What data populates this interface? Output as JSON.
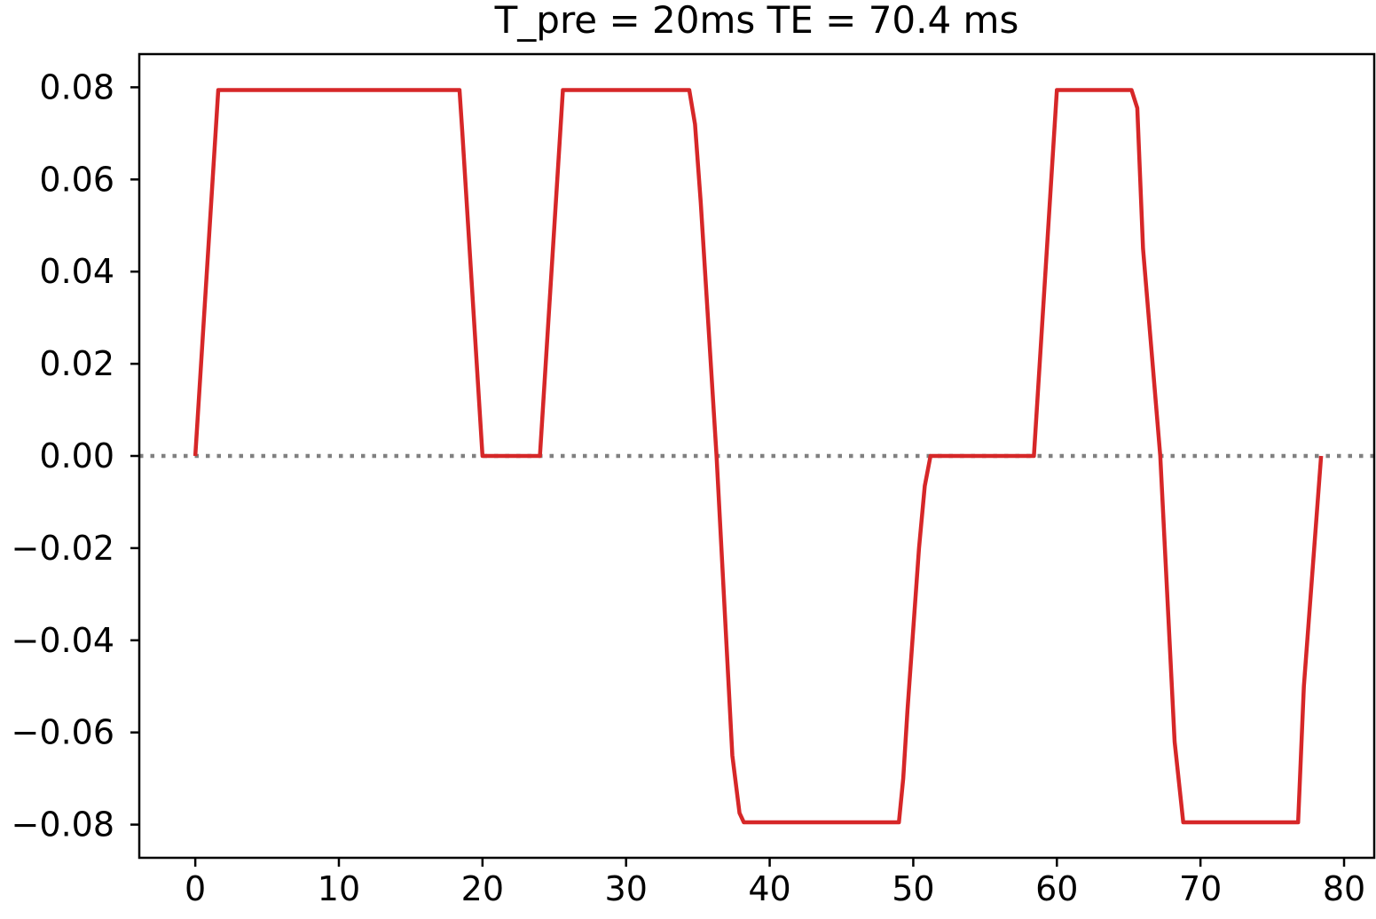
{
  "chart_data": {
    "type": "line",
    "title": "T_pre = 20ms  TE = 70.4 ms",
    "xlabel": "",
    "ylabel": "",
    "xlim": [
      -3.9,
      82.1
    ],
    "ylim": [
      -0.0872,
      0.0872
    ],
    "xticks": [
      0,
      10,
      20,
      30,
      40,
      50,
      60,
      70,
      80
    ],
    "xtick_labels": [
      "0",
      "10",
      "20",
      "30",
      "40",
      "50",
      "60",
      "70",
      "80"
    ],
    "yticks": [
      0.08,
      0.06,
      0.04,
      0.02,
      0.0,
      -0.02,
      -0.04,
      -0.06,
      -0.08
    ],
    "ytick_labels": [
      "0.08",
      "0.06",
      "0.04",
      "0.02",
      "0.00",
      "−0.02",
      "−0.04",
      "−0.06",
      "−0.08"
    ],
    "grid": false,
    "zero_line": {
      "value": 0,
      "style": "dotted",
      "color": "#808080"
    },
    "series": [
      {
        "color": "#d62728",
        "points": [
          [
            0.0,
            0.0
          ],
          [
            1.6,
            0.0794
          ],
          [
            18.4,
            0.0794
          ],
          [
            18.6,
            0.07
          ],
          [
            20.0,
            0.0
          ],
          [
            24.0,
            0.0
          ],
          [
            25.6,
            0.0794
          ],
          [
            34.4,
            0.0794
          ],
          [
            34.8,
            0.072
          ],
          [
            35.2,
            0.055
          ],
          [
            36.3,
            0.0
          ],
          [
            37.4,
            -0.065
          ],
          [
            37.9,
            -0.0775
          ],
          [
            38.2,
            -0.0795
          ],
          [
            49.0,
            -0.0795
          ],
          [
            49.3,
            -0.07
          ],
          [
            49.6,
            -0.055
          ],
          [
            50.4,
            -0.02
          ],
          [
            50.8,
            -0.0065
          ],
          [
            51.2,
            0.0
          ],
          [
            58.4,
            0.0
          ],
          [
            60.0,
            0.0794
          ],
          [
            65.2,
            0.0794
          ],
          [
            65.6,
            0.0755
          ],
          [
            66.0,
            0.045
          ],
          [
            67.2,
            0.0
          ],
          [
            68.2,
            -0.062
          ],
          [
            68.8,
            -0.0795
          ],
          [
            76.8,
            -0.0795
          ],
          [
            77.2,
            -0.05
          ],
          [
            78.4,
            0.0
          ]
        ]
      }
    ]
  }
}
